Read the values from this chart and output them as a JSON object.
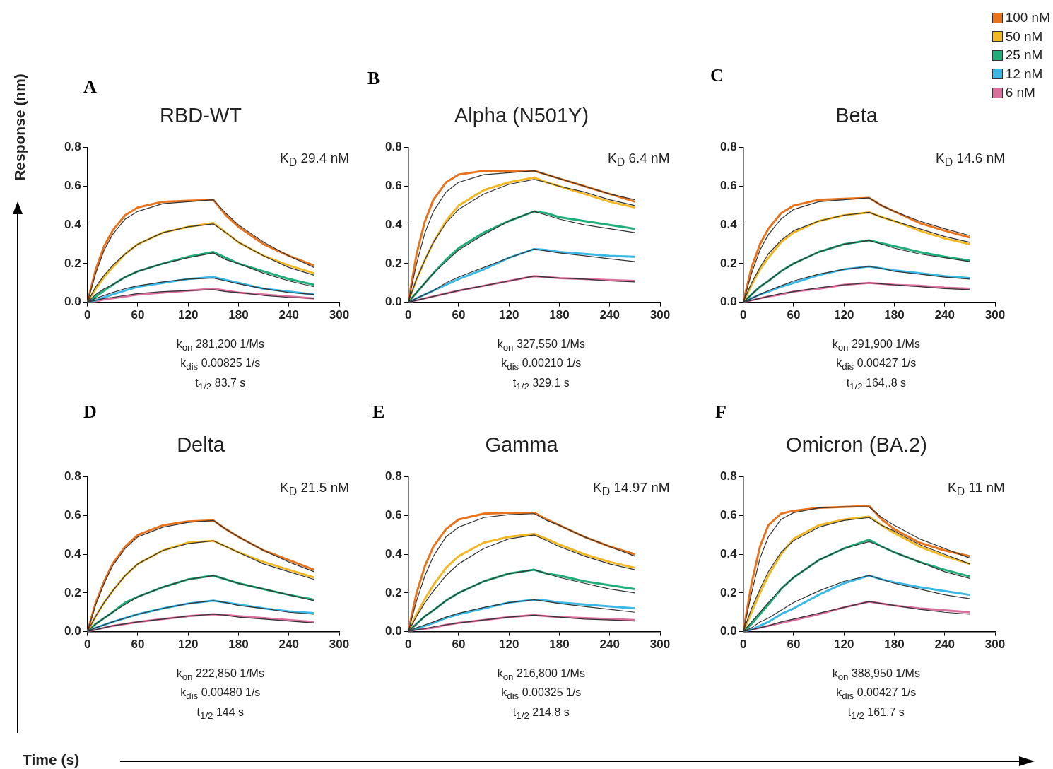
{
  "chart_data": [
    {
      "type": "line",
      "title": "RBD-WT",
      "ylabel": "Response (nm)",
      "xlim": [
        0,
        300
      ],
      "xticks": [
        0,
        60,
        120,
        180,
        240,
        300
      ],
      "ylim": [
        0,
        0.8
      ],
      "yticks": [
        {
          "value": 0,
          "label": "0.0"
        },
        {
          "value": 0.2,
          "label": "0.2"
        },
        {
          "value": 0.4,
          "label": "0.4"
        },
        {
          "value": 0.6,
          "label": "0.6"
        },
        {
          "value": 0.8,
          "label": "0.8"
        }
      ],
      "grid": false,
      "legend": false,
      "x": [
        0,
        10,
        20,
        30,
        45,
        60,
        90,
        120,
        150,
        165,
        180,
        210,
        240,
        270
      ],
      "annotations": [
        "A",
        "K$_{D}$ 29.4 nM",
        "k$_{on}$ 281,200 1/Ms",
        "k$_{dis}$ 0.00825 1/s",
        "t$_{1/2}$ 83.7 s"
      ],
      "series": [
        {
          "color": "#e8731c",
          "values": [
            0,
            0.17,
            0.29,
            0.37,
            0.45,
            0.49,
            0.52,
            0.525,
            0.53,
            0.45,
            0.39,
            0.3,
            0.24,
            0.19
          ]
        },
        {
          "color": "#f2b824",
          "values": [
            0,
            0.07,
            0.13,
            0.18,
            0.25,
            0.3,
            0.36,
            0.39,
            0.41,
            0.36,
            0.31,
            0.24,
            0.19,
            0.15
          ]
        },
        {
          "color": "#1fae7a",
          "values": [
            0,
            0.03,
            0.06,
            0.09,
            0.13,
            0.16,
            0.2,
            0.235,
            0.26,
            0.23,
            0.2,
            0.16,
            0.12,
            0.09
          ]
        },
        {
          "color": "#3ab8e6",
          "values": [
            0,
            0.01,
            0.025,
            0.04,
            0.06,
            0.08,
            0.1,
            0.12,
            0.13,
            0.115,
            0.1,
            0.07,
            0.055,
            0.04
          ]
        },
        {
          "color": "#d9709e",
          "values": [
            0,
            0.005,
            0.015,
            0.02,
            0.03,
            0.04,
            0.05,
            0.06,
            0.07,
            0.06,
            0.05,
            0.04,
            0.03,
            0.02
          ]
        },
        {
          "color": "#333333",
          "values": [
            0,
            0.15,
            0.27,
            0.35,
            0.43,
            0.47,
            0.51,
            0.52,
            0.53,
            0.46,
            0.4,
            0.31,
            0.24,
            0.18
          ]
        },
        {
          "color": "#333333",
          "values": [
            0,
            0.08,
            0.14,
            0.19,
            0.25,
            0.3,
            0.36,
            0.39,
            0.405,
            0.36,
            0.31,
            0.24,
            0.18,
            0.14
          ]
        },
        {
          "color": "#333333",
          "values": [
            0,
            0.04,
            0.07,
            0.09,
            0.13,
            0.16,
            0.2,
            0.23,
            0.255,
            0.22,
            0.2,
            0.15,
            0.11,
            0.08
          ]
        },
        {
          "color": "#333333",
          "values": [
            0,
            0.02,
            0.035,
            0.05,
            0.07,
            0.085,
            0.105,
            0.12,
            0.125,
            0.11,
            0.095,
            0.07,
            0.05,
            0.04
          ]
        },
        {
          "color": "#333333",
          "values": [
            0,
            0.01,
            0.02,
            0.025,
            0.035,
            0.045,
            0.055,
            0.06,
            0.065,
            0.055,
            0.05,
            0.035,
            0.025,
            0.02
          ]
        }
      ]
    },
    {
      "type": "line",
      "title": "Alpha (N501Y)",
      "xlim": [
        0,
        300
      ],
      "xticks": [
        0,
        60,
        120,
        180,
        240,
        300
      ],
      "ylim": [
        0,
        0.8
      ],
      "yticks": [
        {
          "value": 0,
          "label": "0.0"
        },
        {
          "value": 0.2,
          "label": "0.2"
        },
        {
          "value": 0.4,
          "label": "0.4"
        },
        {
          "value": 0.6,
          "label": "0.6"
        },
        {
          "value": 0.8,
          "label": "0.8"
        }
      ],
      "grid": false,
      "legend": false,
      "x": [
        0,
        10,
        20,
        30,
        45,
        60,
        90,
        120,
        150,
        165,
        180,
        210,
        240,
        270
      ],
      "annotations": [
        "B",
        "K$_{D}$ 6.4 nM",
        "k$_{on}$ 327,550 1/Ms",
        "k$_{dis}$ 0.00210 1/s",
        "t$_{1/2}$ 329.1 s"
      ],
      "series": [
        {
          "color": "#e8731c",
          "values": [
            0,
            0.25,
            0.42,
            0.53,
            0.62,
            0.66,
            0.68,
            0.68,
            0.68,
            0.66,
            0.64,
            0.6,
            0.56,
            0.52
          ]
        },
        {
          "color": "#f2b824",
          "values": [
            0,
            0.12,
            0.22,
            0.31,
            0.42,
            0.5,
            0.58,
            0.62,
            0.645,
            0.62,
            0.6,
            0.56,
            0.52,
            0.49
          ]
        },
        {
          "color": "#1fae7a",
          "values": [
            0,
            0.05,
            0.1,
            0.15,
            0.22,
            0.28,
            0.36,
            0.42,
            0.47,
            0.46,
            0.44,
            0.42,
            0.4,
            0.38
          ]
        },
        {
          "color": "#3ab8e6",
          "values": [
            0,
            0.02,
            0.04,
            0.06,
            0.09,
            0.12,
            0.17,
            0.23,
            0.275,
            0.27,
            0.26,
            0.25,
            0.24,
            0.235
          ]
        },
        {
          "color": "#d9709e",
          "values": [
            0,
            0.01,
            0.02,
            0.03,
            0.045,
            0.06,
            0.085,
            0.11,
            0.135,
            0.13,
            0.125,
            0.12,
            0.115,
            0.11
          ]
        },
        {
          "color": "#333333",
          "values": [
            0,
            0.2,
            0.36,
            0.47,
            0.57,
            0.62,
            0.66,
            0.67,
            0.68,
            0.66,
            0.64,
            0.6,
            0.56,
            0.53
          ]
        },
        {
          "color": "#333333",
          "values": [
            0,
            0.12,
            0.22,
            0.31,
            0.41,
            0.48,
            0.56,
            0.61,
            0.635,
            0.62,
            0.6,
            0.57,
            0.53,
            0.5
          ]
        },
        {
          "color": "#333333",
          "values": [
            0,
            0.05,
            0.1,
            0.15,
            0.21,
            0.27,
            0.35,
            0.42,
            0.47,
            0.45,
            0.43,
            0.4,
            0.38,
            0.36
          ]
        },
        {
          "color": "#333333",
          "values": [
            0,
            0.02,
            0.04,
            0.06,
            0.1,
            0.13,
            0.18,
            0.23,
            0.275,
            0.265,
            0.255,
            0.24,
            0.225,
            0.21
          ]
        },
        {
          "color": "#333333",
          "values": [
            0,
            0.01,
            0.02,
            0.03,
            0.045,
            0.06,
            0.085,
            0.11,
            0.135,
            0.13,
            0.125,
            0.12,
            0.11,
            0.105
          ]
        }
      ]
    },
    {
      "type": "line",
      "title": "Beta",
      "xlim": [
        0,
        300
      ],
      "xticks": [
        0,
        60,
        120,
        180,
        240,
        300
      ],
      "ylim": [
        0,
        0.8
      ],
      "yticks": [
        {
          "value": 0,
          "label": "0.0"
        },
        {
          "value": 0.2,
          "label": "0.2"
        },
        {
          "value": 0.4,
          "label": "0.4"
        },
        {
          "value": 0.6,
          "label": "0.6"
        },
        {
          "value": 0.8,
          "label": "0.8"
        }
      ],
      "grid": false,
      "legend": "top right",
      "x": [
        0,
        10,
        20,
        30,
        45,
        60,
        90,
        120,
        150,
        165,
        180,
        210,
        240,
        270
      ],
      "annotations": [
        "C",
        "K$_{D}$ 14.6 nM",
        "k$_{on}$ 291,900 1/Ms",
        "k$_{dis}$ 0.00427 1/s",
        "t$_{1/2}$ 164,.8 s"
      ],
      "series": [
        {
          "name": "100 nM",
          "color": "#e8731c",
          "values": [
            0,
            0.18,
            0.3,
            0.38,
            0.46,
            0.5,
            0.53,
            0.535,
            0.54,
            0.5,
            0.47,
            0.41,
            0.37,
            0.335
          ]
        },
        {
          "name": "50 nM",
          "color": "#f2b824",
          "values": [
            0,
            0.09,
            0.17,
            0.23,
            0.31,
            0.36,
            0.42,
            0.45,
            0.465,
            0.44,
            0.42,
            0.37,
            0.33,
            0.3
          ]
        },
        {
          "name": "25 nM",
          "color": "#1fae7a",
          "values": [
            0,
            0.04,
            0.08,
            0.11,
            0.16,
            0.2,
            0.26,
            0.3,
            0.32,
            0.305,
            0.29,
            0.26,
            0.235,
            0.215
          ]
        },
        {
          "name": "12 nM",
          "color": "#3ab8e6",
          "values": [
            0,
            0.02,
            0.04,
            0.055,
            0.08,
            0.1,
            0.14,
            0.17,
            0.185,
            0.175,
            0.165,
            0.15,
            0.135,
            0.125
          ]
        },
        {
          "name": "6 nM",
          "color": "#d9709e",
          "values": [
            0,
            0.01,
            0.02,
            0.03,
            0.04,
            0.055,
            0.07,
            0.09,
            0.1,
            0.095,
            0.09,
            0.085,
            0.075,
            0.07
          ]
        },
        {
          "color": "#333333",
          "values": [
            0,
            0.15,
            0.27,
            0.35,
            0.43,
            0.48,
            0.52,
            0.53,
            0.54,
            0.5,
            0.47,
            0.42,
            0.38,
            0.345
          ]
        },
        {
          "color": "#333333",
          "values": [
            0,
            0.1,
            0.18,
            0.25,
            0.32,
            0.37,
            0.42,
            0.45,
            0.465,
            0.44,
            0.42,
            0.38,
            0.34,
            0.31
          ]
        },
        {
          "color": "#333333",
          "values": [
            0,
            0.04,
            0.08,
            0.11,
            0.16,
            0.2,
            0.26,
            0.3,
            0.32,
            0.3,
            0.28,
            0.25,
            0.23,
            0.21
          ]
        },
        {
          "color": "#333333",
          "values": [
            0,
            0.02,
            0.04,
            0.06,
            0.085,
            0.11,
            0.145,
            0.17,
            0.185,
            0.175,
            0.16,
            0.145,
            0.13,
            0.12
          ]
        },
        {
          "color": "#333333",
          "values": [
            0,
            0.01,
            0.02,
            0.03,
            0.045,
            0.055,
            0.075,
            0.09,
            0.1,
            0.095,
            0.09,
            0.08,
            0.07,
            0.065
          ]
        }
      ]
    },
    {
      "type": "line",
      "title": "Delta",
      "xlabel": "Time (s)",
      "xlim": [
        0,
        300
      ],
      "xticks": [
        0,
        60,
        120,
        180,
        240,
        300
      ],
      "ylim": [
        0,
        0.8
      ],
      "yticks": [
        {
          "value": 0,
          "label": "0.0"
        },
        {
          "value": 0.2,
          "label": "0.2"
        },
        {
          "value": 0.4,
          "label": "0.4"
        },
        {
          "value": 0.6,
          "label": "0.6"
        },
        {
          "value": 0.8,
          "label": "0.8"
        }
      ],
      "grid": false,
      "legend": false,
      "x": [
        0,
        10,
        20,
        30,
        45,
        60,
        90,
        120,
        150,
        165,
        180,
        210,
        240,
        270
      ],
      "annotations": [
        "D",
        "K$_{D}$ 21.5 nM",
        "k$_{on}$ 222,850 1/Ms",
        "k$_{dis}$ 0.00480 1/s",
        "t$_{1/2}$ 144 s"
      ],
      "series": [
        {
          "color": "#e8731c",
          "values": [
            0,
            0.15,
            0.26,
            0.35,
            0.44,
            0.5,
            0.55,
            0.57,
            0.575,
            0.53,
            0.49,
            0.42,
            0.37,
            0.32
          ]
        },
        {
          "color": "#f2b824",
          "values": [
            0,
            0.08,
            0.15,
            0.21,
            0.29,
            0.35,
            0.42,
            0.46,
            0.47,
            0.44,
            0.41,
            0.36,
            0.32,
            0.28
          ]
        },
        {
          "color": "#1fae7a",
          "values": [
            0,
            0.04,
            0.07,
            0.1,
            0.15,
            0.18,
            0.23,
            0.27,
            0.29,
            0.27,
            0.25,
            0.22,
            0.19,
            0.165
          ]
        },
        {
          "color": "#3ab8e6",
          "values": [
            0,
            0.02,
            0.035,
            0.05,
            0.07,
            0.09,
            0.12,
            0.145,
            0.16,
            0.15,
            0.14,
            0.12,
            0.105,
            0.095
          ]
        },
        {
          "color": "#d9709e",
          "values": [
            0,
            0.01,
            0.02,
            0.03,
            0.04,
            0.05,
            0.065,
            0.08,
            0.09,
            0.085,
            0.08,
            0.07,
            0.06,
            0.05
          ]
        },
        {
          "color": "#333333",
          "values": [
            0,
            0.14,
            0.25,
            0.34,
            0.43,
            0.49,
            0.54,
            0.565,
            0.575,
            0.53,
            0.49,
            0.42,
            0.36,
            0.31
          ]
        },
        {
          "color": "#333333",
          "values": [
            0,
            0.08,
            0.15,
            0.21,
            0.29,
            0.35,
            0.42,
            0.455,
            0.47,
            0.44,
            0.41,
            0.35,
            0.31,
            0.27
          ]
        },
        {
          "color": "#333333",
          "values": [
            0,
            0.04,
            0.07,
            0.1,
            0.14,
            0.18,
            0.23,
            0.27,
            0.29,
            0.27,
            0.25,
            0.22,
            0.19,
            0.16
          ]
        },
        {
          "color": "#333333",
          "values": [
            0,
            0.02,
            0.035,
            0.05,
            0.07,
            0.09,
            0.12,
            0.145,
            0.16,
            0.15,
            0.135,
            0.12,
            0.1,
            0.09
          ]
        },
        {
          "color": "#333333",
          "values": [
            0,
            0.01,
            0.02,
            0.03,
            0.04,
            0.05,
            0.065,
            0.08,
            0.09,
            0.085,
            0.075,
            0.065,
            0.055,
            0.045
          ]
        }
      ]
    },
    {
      "type": "line",
      "title": "Gamma",
      "xlim": [
        0,
        300
      ],
      "xticks": [
        0,
        60,
        120,
        180,
        240,
        300
      ],
      "ylim": [
        0,
        0.8
      ],
      "yticks": [
        {
          "value": 0,
          "label": "0.0"
        },
        {
          "value": 0.2,
          "label": "0.2"
        },
        {
          "value": 0.4,
          "label": "0.4"
        },
        {
          "value": 0.6,
          "label": "0.6"
        },
        {
          "value": 0.8,
          "label": "0.8"
        }
      ],
      "grid": false,
      "legend": false,
      "x": [
        0,
        10,
        20,
        30,
        45,
        60,
        90,
        120,
        150,
        165,
        180,
        210,
        240,
        270
      ],
      "annotations": [
        "E",
        "K$_{D}$ 14.97 nM",
        "k$_{on}$ 216,800 1/Ms",
        "k$_{dis}$ 0.00325 1/s",
        "t$_{1/2}$ 214.8 s"
      ],
      "series": [
        {
          "color": "#e8731c",
          "values": [
            0,
            0.2,
            0.34,
            0.44,
            0.53,
            0.58,
            0.61,
            0.615,
            0.615,
            0.58,
            0.55,
            0.49,
            0.44,
            0.4
          ]
        },
        {
          "color": "#f2b824",
          "values": [
            0,
            0.09,
            0.17,
            0.24,
            0.33,
            0.39,
            0.46,
            0.49,
            0.505,
            0.48,
            0.45,
            0.4,
            0.36,
            0.33
          ]
        },
        {
          "color": "#1fae7a",
          "values": [
            0,
            0.04,
            0.08,
            0.11,
            0.16,
            0.2,
            0.26,
            0.3,
            0.32,
            0.3,
            0.29,
            0.26,
            0.24,
            0.22
          ]
        },
        {
          "color": "#3ab8e6",
          "values": [
            0,
            0.015,
            0.03,
            0.045,
            0.07,
            0.09,
            0.12,
            0.15,
            0.165,
            0.16,
            0.15,
            0.14,
            0.13,
            0.12
          ]
        },
        {
          "color": "#d9709e",
          "values": [
            0,
            0.01,
            0.015,
            0.02,
            0.035,
            0.045,
            0.06,
            0.075,
            0.085,
            0.08,
            0.075,
            0.07,
            0.065,
            0.06
          ]
        },
        {
          "color": "#333333",
          "values": [
            0,
            0.16,
            0.29,
            0.39,
            0.49,
            0.54,
            0.59,
            0.605,
            0.61,
            0.575,
            0.55,
            0.49,
            0.44,
            0.39
          ]
        },
        {
          "color": "#333333",
          "values": [
            0,
            0.08,
            0.15,
            0.21,
            0.29,
            0.35,
            0.43,
            0.48,
            0.5,
            0.47,
            0.44,
            0.39,
            0.35,
            0.32
          ]
        },
        {
          "color": "#333333",
          "values": [
            0,
            0.04,
            0.08,
            0.11,
            0.16,
            0.2,
            0.26,
            0.3,
            0.32,
            0.3,
            0.28,
            0.25,
            0.22,
            0.2
          ]
        },
        {
          "color": "#333333",
          "values": [
            0,
            0.02,
            0.035,
            0.05,
            0.075,
            0.095,
            0.125,
            0.15,
            0.165,
            0.155,
            0.145,
            0.13,
            0.115,
            0.1
          ]
        },
        {
          "color": "#333333",
          "values": [
            0,
            0.01,
            0.015,
            0.025,
            0.035,
            0.045,
            0.06,
            0.075,
            0.085,
            0.08,
            0.075,
            0.065,
            0.06,
            0.055
          ]
        }
      ]
    },
    {
      "type": "line",
      "title": "Omicron (BA.2)",
      "xlim": [
        0,
        300
      ],
      "xticks": [
        0,
        60,
        120,
        180,
        240,
        300
      ],
      "ylim": [
        0,
        0.8
      ],
      "yticks": [
        {
          "value": 0,
          "label": "0.0"
        },
        {
          "value": 0.2,
          "label": "0.2"
        },
        {
          "value": 0.4,
          "label": "0.4"
        },
        {
          "value": 0.6,
          "label": "0.6"
        },
        {
          "value": 0.8,
          "label": "0.8"
        }
      ],
      "grid": false,
      "legend": false,
      "x": [
        0,
        10,
        20,
        30,
        45,
        60,
        90,
        120,
        150,
        165,
        180,
        210,
        240,
        270
      ],
      "annotations": [
        "F",
        "K$_{D}$ 11 nM",
        "k$_{on}$ 388,950 1/Ms",
        "k$_{dis}$ 0.00427 1/s",
        "t$_{1/2}$ 161.7 s"
      ],
      "series": [
        {
          "color": "#e8731c",
          "values": [
            0,
            0.25,
            0.44,
            0.55,
            0.61,
            0.625,
            0.64,
            0.645,
            0.65,
            0.58,
            0.53,
            0.46,
            0.42,
            0.39
          ]
        },
        {
          "color": "#f2b824",
          "values": [
            0,
            0.1,
            0.2,
            0.29,
            0.4,
            0.48,
            0.55,
            0.58,
            0.595,
            0.55,
            0.51,
            0.44,
            0.39,
            0.35
          ]
        },
        {
          "color": "#1fae7a",
          "values": [
            0,
            0.04,
            0.09,
            0.14,
            0.22,
            0.28,
            0.37,
            0.43,
            0.475,
            0.44,
            0.41,
            0.36,
            0.32,
            0.285
          ]
        },
        {
          "color": "#3ab8e6",
          "values": [
            0,
            0.01,
            0.03,
            0.05,
            0.09,
            0.12,
            0.19,
            0.25,
            0.29,
            0.27,
            0.255,
            0.23,
            0.21,
            0.19
          ]
        },
        {
          "color": "#d9709e",
          "values": [
            0,
            0.01,
            0.02,
            0.03,
            0.045,
            0.06,
            0.09,
            0.125,
            0.155,
            0.145,
            0.135,
            0.12,
            0.11,
            0.1
          ]
        },
        {
          "color": "#333333",
          "values": [
            0,
            0.2,
            0.38,
            0.49,
            0.58,
            0.615,
            0.64,
            0.645,
            0.645,
            0.59,
            0.55,
            0.48,
            0.43,
            0.38
          ]
        },
        {
          "color": "#333333",
          "values": [
            0,
            0.12,
            0.22,
            0.31,
            0.41,
            0.47,
            0.54,
            0.575,
            0.59,
            0.55,
            0.52,
            0.45,
            0.4,
            0.35
          ]
        },
        {
          "color": "#333333",
          "values": [
            0,
            0.05,
            0.1,
            0.15,
            0.22,
            0.28,
            0.37,
            0.43,
            0.465,
            0.44,
            0.41,
            0.36,
            0.31,
            0.275
          ]
        },
        {
          "color": "#333333",
          "values": [
            0,
            0.02,
            0.05,
            0.07,
            0.11,
            0.15,
            0.21,
            0.26,
            0.29,
            0.27,
            0.25,
            0.22,
            0.19,
            0.17
          ]
        },
        {
          "color": "#333333",
          "values": [
            0,
            0.01,
            0.02,
            0.03,
            0.05,
            0.065,
            0.095,
            0.125,
            0.155,
            0.145,
            0.135,
            0.115,
            0.1,
            0.09
          ]
        }
      ]
    }
  ]
}
